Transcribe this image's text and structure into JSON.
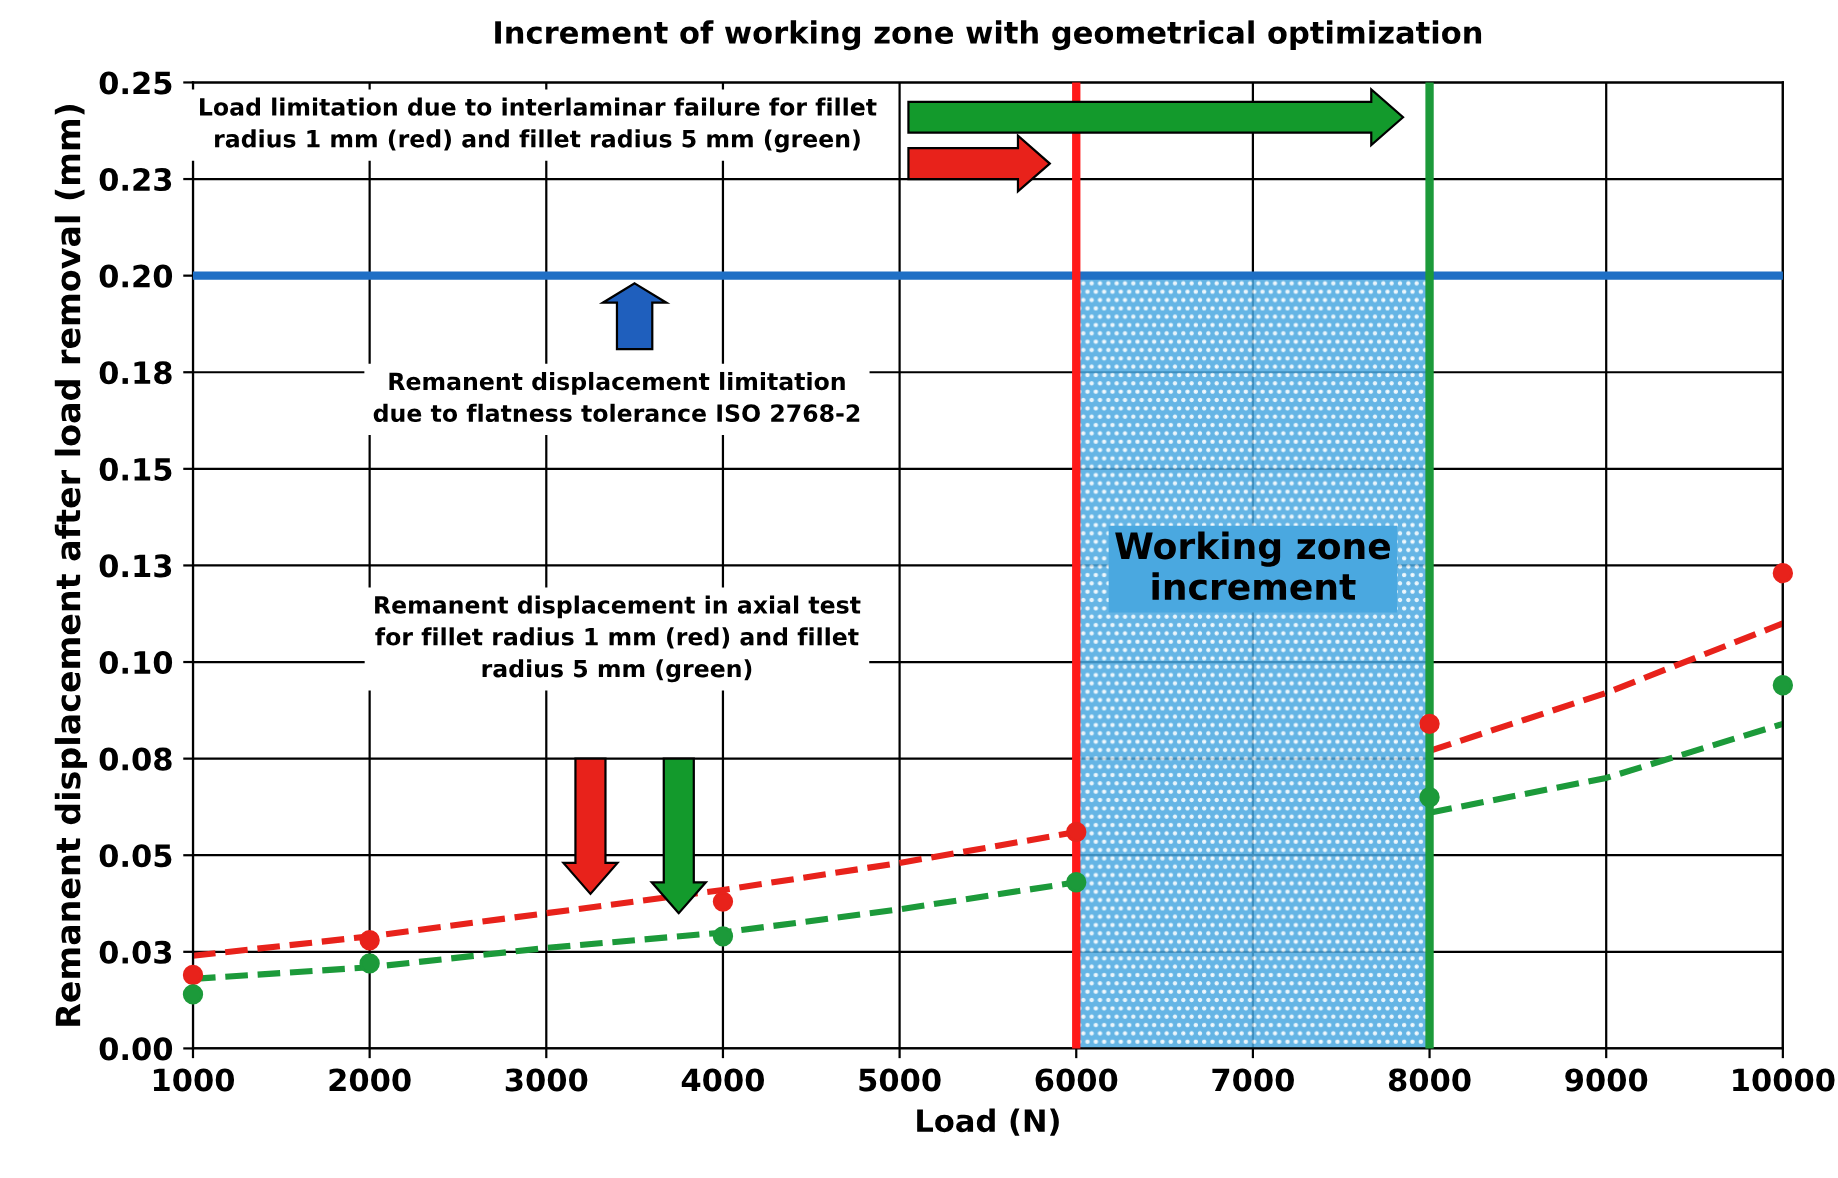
{
  "chart_data": {
    "type": "scatter",
    "title": "Increment of working zone with geometrical optimization",
    "xlabel": "Load (N)",
    "ylabel": "Remanent displacement after load removal (mm)",
    "x": [
      1000,
      2000,
      4000,
      6000,
      8000,
      10000
    ],
    "series": [
      {
        "color": "#e8221b",
        "values": [
          0.019,
          0.028,
          0.038,
          0.056,
          0.084,
          0.123
        ],
        "marker": "circle"
      },
      {
        "color": "#1c9a3a",
        "values": [
          0.014,
          0.022,
          0.029,
          0.043,
          0.065,
          0.094
        ],
        "marker": "circle"
      },
      {
        "type": "line",
        "color": "#e8221b",
        "line_style": "dashed",
        "marker": "none",
        "x": [
          1000,
          2000,
          3000,
          4000,
          5000,
          6000,
          7000,
          8000,
          9000,
          10000
        ],
        "values": [
          0.024,
          0.029,
          0.035,
          0.041,
          0.048,
          0.056,
          null,
          0.077,
          0.092,
          0.11
        ]
      },
      {
        "type": "line",
        "color": "#1c9a3a",
        "line_style": "dashed",
        "marker": "none",
        "x": [
          1000,
          2000,
          3000,
          4000,
          5000,
          6000,
          7000,
          8000,
          9000,
          10000
        ],
        "values": [
          0.018,
          0.021,
          0.026,
          0.03,
          0.036,
          0.043,
          null,
          0.061,
          0.07,
          0.084
        ]
      }
    ],
    "xlim": [
      1000,
      10000
    ],
    "xticks": [
      1000,
      2000,
      3000,
      4000,
      5000,
      6000,
      7000,
      8000,
      9000,
      10000
    ],
    "ylim": [
      0,
      0.25
    ],
    "yticks": [
      {
        "value": 0,
        "label": "0.00"
      },
      {
        "value": 0.025,
        "label": "0.03"
      },
      {
        "value": 0.05,
        "label": "0.05"
      },
      {
        "value": 0.075,
        "label": "0.08"
      },
      {
        "value": 0.1,
        "label": "0.10"
      },
      {
        "value": 0.125,
        "label": "0.13"
      },
      {
        "value": 0.15,
        "label": "0.15"
      },
      {
        "value": 0.175,
        "label": "0.18"
      },
      {
        "value": 0.2,
        "label": "0.20"
      },
      {
        "value": 0.225,
        "label": "0.23"
      },
      {
        "value": 0.25,
        "label": "0.25"
      }
    ],
    "grid": true,
    "legend": false,
    "ref_lines": [
      {
        "axis": "y",
        "value": 0.2,
        "color": "#1f6fc5"
      },
      {
        "axis": "x",
        "value": 6000,
        "color": "#ff1a1a"
      },
      {
        "axis": "x",
        "value": 8000,
        "color": "#1c9a3a"
      }
    ],
    "bands": [
      {
        "axis": "x",
        "from": 6000,
        "to": 8000,
        "label": "Working zone\nincrement",
        "color": "#4aa8e0"
      }
    ],
    "annotations": [
      "Load limitation due to interlaminar failure for fillet\nradius 1 mm (red) and fillet radius 5 mm (green)",
      "Remanent displacement limitation\ndue to flatness tolerance ISO 2768-2",
      "Remanent displacement in axial test\nfor fillet radius 1 mm (red) and fillet\nradius 5 mm (green)"
    ]
  }
}
